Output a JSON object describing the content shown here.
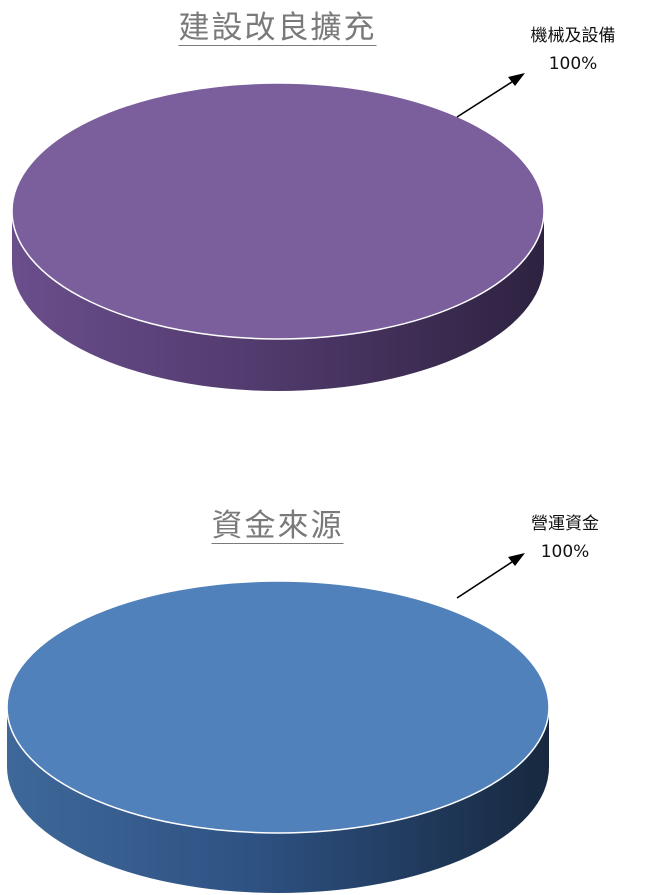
{
  "chart_data": [
    {
      "type": "pie",
      "title": "建設改良擴充",
      "slices": [
        {
          "label": "機械及設備",
          "value": 100,
          "value_label": "100%",
          "color": "#8064a2"
        }
      ]
    },
    {
      "type": "pie",
      "title": "資金來源",
      "slices": [
        {
          "label": "營運資金",
          "value": 100,
          "value_label": "100%",
          "color": "#4f81bd"
        }
      ]
    }
  ]
}
